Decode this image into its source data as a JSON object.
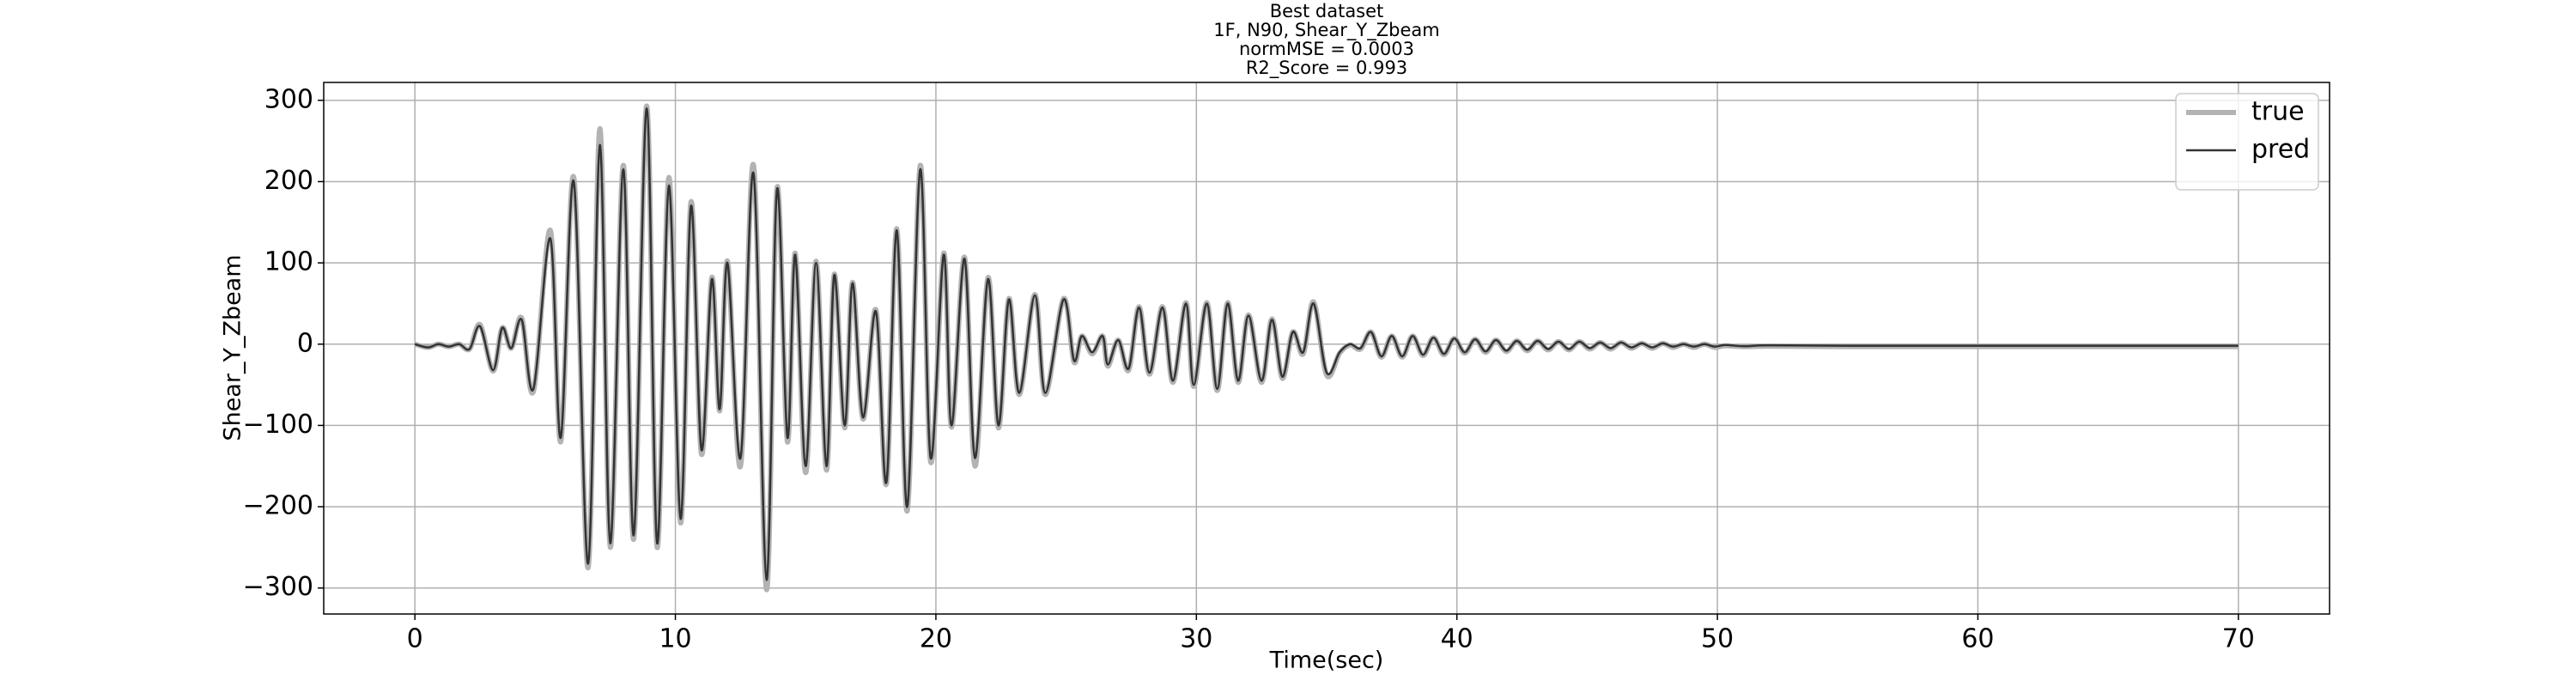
{
  "chart_data": {
    "type": "line",
    "title": "Best dataset",
    "subtitle": [
      "1F, N90, Shear_Y_Zbeam",
      "normMSE = 0.0003",
      "R2_Score = 0.993"
    ],
    "xlabel": "Time(sec)",
    "ylabel": "Shear_Y_Zbeam",
    "x": [
      0,
      0.5,
      0.9,
      1.3,
      1.7,
      2.1,
      2.5,
      3.0,
      3.35,
      3.7,
      4.1,
      4.55,
      5.2,
      5.6,
      6.1,
      6.65,
      7.1,
      7.5,
      8.0,
      8.4,
      8.9,
      9.3,
      9.75,
      10.2,
      10.6,
      11.0,
      11.4,
      11.7,
      12.0,
      12.5,
      13.0,
      13.5,
      13.9,
      14.3,
      14.6,
      15.0,
      15.4,
      15.8,
      16.1,
      16.5,
      16.8,
      17.2,
      17.7,
      18.1,
      18.5,
      18.9,
      19.4,
      19.8,
      20.3,
      20.6,
      21.1,
      21.5,
      22.0,
      22.4,
      22.8,
      23.2,
      23.8,
      24.2,
      24.9,
      25.3,
      25.6,
      26.0,
      26.4,
      26.6,
      27.0,
      27.4,
      27.8,
      28.2,
      28.7,
      29.1,
      29.6,
      29.9,
      30.4,
      30.8,
      31.2,
      31.6,
      32.0,
      32.5,
      32.9,
      33.3,
      33.7,
      34.1,
      34.5,
      35.0,
      35.5,
      35.9,
      36.3,
      36.7,
      37.1,
      37.5,
      37.9,
      38.3,
      38.7,
      39.1,
      39.5,
      39.9,
      40.3,
      40.7,
      41.1,
      41.5,
      41.9,
      42.3,
      42.7,
      43.1,
      43.5,
      43.9,
      44.3,
      44.7,
      45.1,
      45.5,
      45.9,
      46.3,
      46.7,
      47.1,
      47.5,
      47.9,
      48.3,
      48.7,
      49.1,
      49.5,
      49.9,
      50.3,
      51,
      52,
      55,
      60,
      65,
      70
    ],
    "series": [
      {
        "name": "true",
        "color": "#b3b3b3",
        "values": [
          0,
          -4,
          0,
          -3,
          0,
          -6,
          24,
          -33,
          20,
          -5,
          32,
          -58,
          140,
          -120,
          205,
          -275,
          265,
          -250,
          220,
          -240,
          293,
          -250,
          205,
          -220,
          175,
          -135,
          82,
          -82,
          102,
          -150,
          220,
          -302,
          192,
          -120,
          112,
          -158,
          102,
          -155,
          86,
          -103,
          76,
          -92,
          42,
          -172,
          142,
          -205,
          220,
          -145,
          112,
          -102,
          107,
          -150,
          82,
          -103,
          56,
          -62,
          61,
          -62,
          56,
          -22,
          10,
          -12,
          10,
          -27,
          5,
          -32,
          46,
          -37,
          46,
          -47,
          51,
          -52,
          51,
          -57,
          51,
          -47,
          36,
          -47,
          31,
          -42,
          15,
          -12,
          52,
          -38,
          -11,
          -1,
          -6,
          15,
          -16,
          10,
          -16,
          10,
          -14,
          8,
          -13,
          7,
          -11,
          6,
          -10,
          5,
          -9,
          4,
          -8,
          4,
          -7,
          3,
          -7,
          3,
          -6,
          2,
          -6,
          2,
          -5,
          1,
          -5,
          1,
          -4,
          0,
          -4,
          0,
          -4,
          -2,
          -3,
          -2.5,
          -3,
          -3,
          -3,
          -3
        ]
      },
      {
        "name": "pred",
        "color": "#333333",
        "values": [
          0,
          -4,
          0,
          -3,
          0,
          -6,
          22,
          -32,
          20,
          -5,
          30,
          -55,
          130,
          -115,
          200,
          -270,
          245,
          -245,
          215,
          -235,
          290,
          -245,
          195,
          -215,
          170,
          -130,
          80,
          -80,
          100,
          -140,
          210,
          -290,
          190,
          -115,
          110,
          -150,
          100,
          -150,
          85,
          -100,
          75,
          -90,
          40,
          -170,
          140,
          -200,
          215,
          -140,
          110,
          -100,
          105,
          -140,
          80,
          -100,
          55,
          -60,
          60,
          -60,
          55,
          -20,
          10,
          -10,
          10,
          -25,
          5,
          -30,
          45,
          -35,
          45,
          -45,
          50,
          -50,
          50,
          -55,
          50,
          -45,
          35,
          -45,
          30,
          -40,
          15,
          -10,
          50,
          -35,
          -10,
          0,
          -5,
          15,
          -15,
          10,
          -15,
          10,
          -13,
          8,
          -12,
          7,
          -10,
          6,
          -9,
          5,
          -8,
          4,
          -7,
          4,
          -6,
          3,
          -6,
          3,
          -5,
          2,
          -5,
          2,
          -4,
          1,
          -4,
          1,
          -3,
          0,
          -3,
          0,
          -3,
          -1,
          -2.5,
          -1.5,
          -2,
          -2,
          -2,
          -2
        ]
      }
    ],
    "xlim": [
      -3.5,
      73.5
    ],
    "xticks": [
      0,
      10,
      20,
      30,
      40,
      50,
      60,
      70
    ],
    "ylim": [
      -332,
      322
    ],
    "yticks": [
      {
        "value": -300,
        "label": "−300"
      },
      {
        "value": -200,
        "label": "−200"
      },
      {
        "value": -100,
        "label": "−100"
      },
      0,
      100,
      200,
      300
    ],
    "grid": true,
    "legend": "upper right"
  }
}
